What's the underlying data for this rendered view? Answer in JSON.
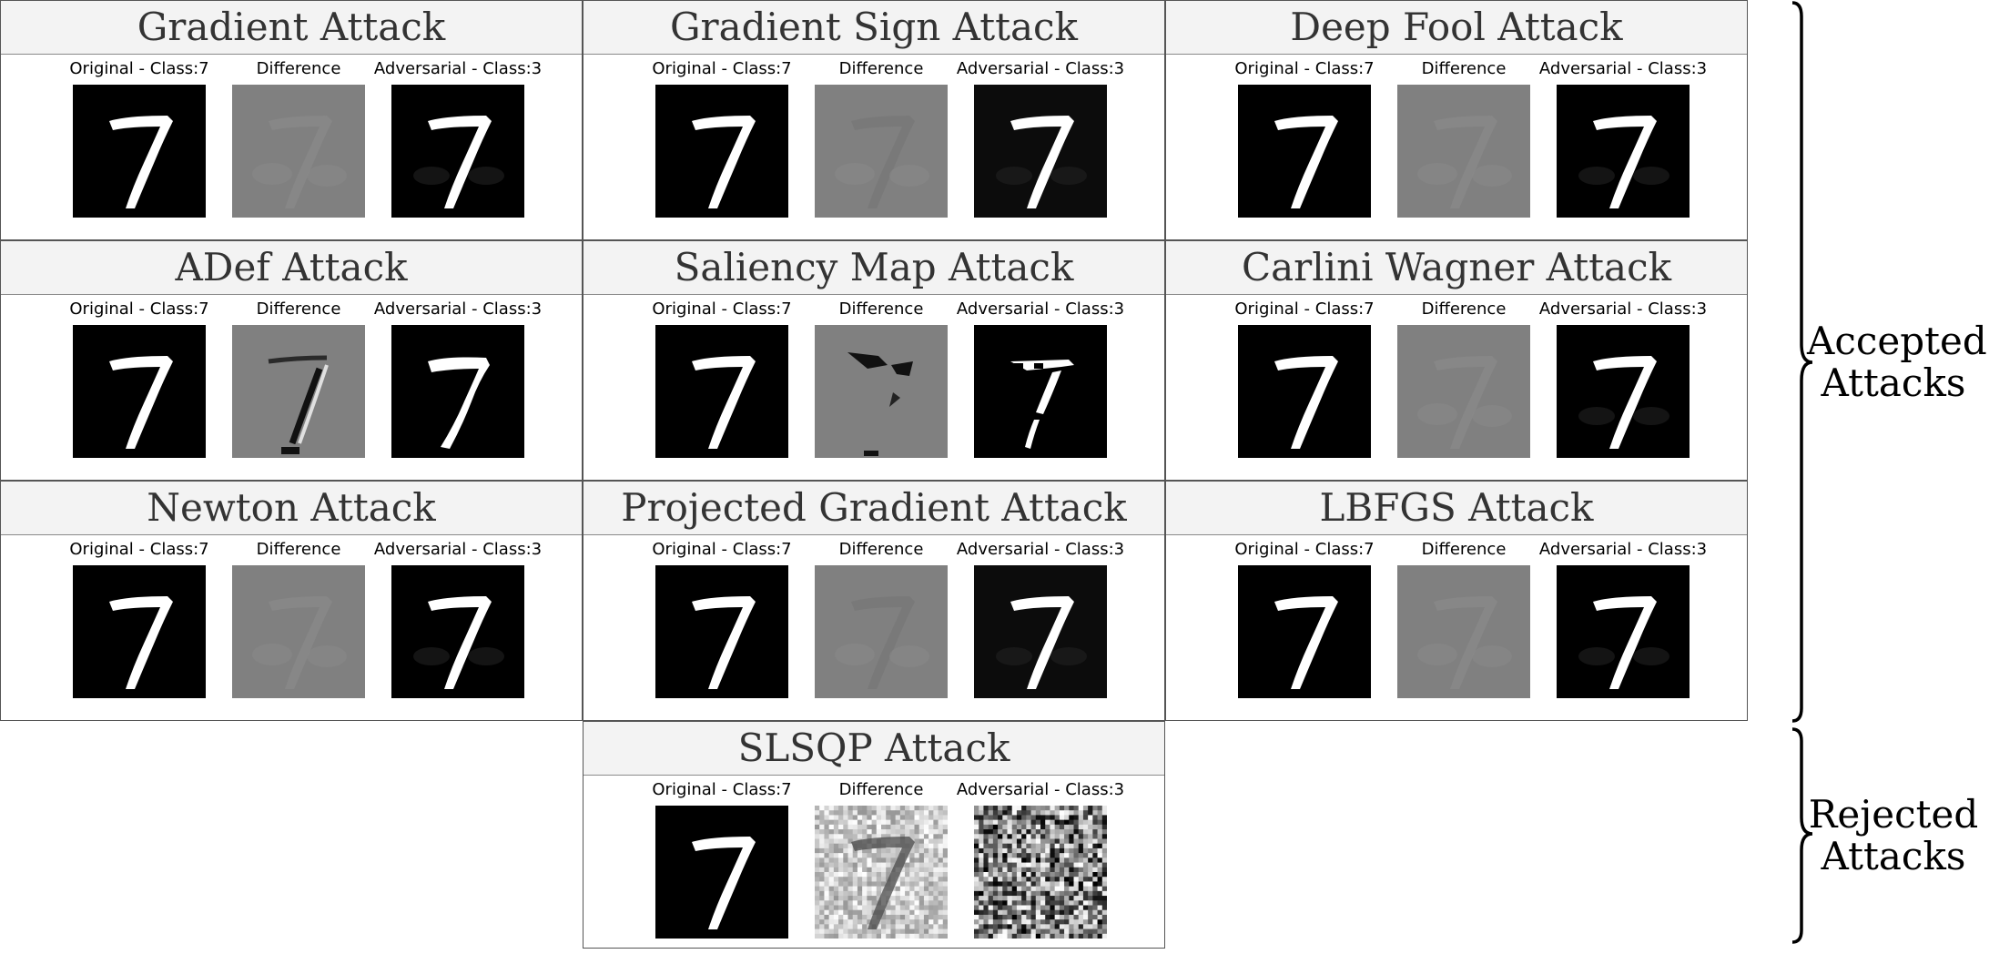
{
  "captions": {
    "original": "Original - Class:7",
    "difference": "Difference",
    "adversarial": "Adversarial - Class:3"
  },
  "panels": [
    {
      "title": "Gradient Attack",
      "diff_style": "faint",
      "adv_style": "faint"
    },
    {
      "title": "Gradient Sign Attack",
      "diff_style": "uniform",
      "adv_style": "uniform"
    },
    {
      "title": "Deep Fool Attack",
      "diff_style": "faint",
      "adv_style": "faint"
    },
    {
      "title": "ADef Attack",
      "diff_style": "deform",
      "adv_style": "deform"
    },
    {
      "title": "Saliency Map Attack",
      "diff_style": "saliency",
      "adv_style": "saliency"
    },
    {
      "title": "Carlini Wagner Attack",
      "diff_style": "faint",
      "adv_style": "faint"
    },
    {
      "title": "Newton Attack",
      "diff_style": "faint",
      "adv_style": "faint"
    },
    {
      "title": "Projected Gradient Attack",
      "diff_style": "uniform",
      "adv_style": "uniform"
    },
    {
      "title": "LBFGS Attack",
      "diff_style": "faint",
      "adv_style": "faint"
    },
    {
      "title": "SLSQP Attack",
      "diff_style": "noise",
      "adv_style": "noise"
    }
  ],
  "groups": {
    "accepted": "Accepted\nAttacks",
    "rejected": "Rejected\nAttacks"
  },
  "colors": {
    "panel_header_bg": "#f3f3f3",
    "diff_gray": "#808080",
    "digit": "#ffffff",
    "background": "#000000"
  }
}
